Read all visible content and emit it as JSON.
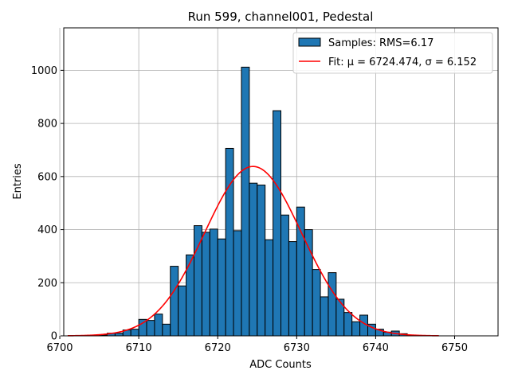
{
  "chart_data": {
    "type": "bar",
    "title": "Run 599, channel001, Pedestal",
    "xlabel": "ADC Counts",
    "ylabel": "Entries",
    "xlim": [
      6700.5,
      6755.5
    ],
    "ylim": [
      0,
      1160
    ],
    "xticks": [
      6700,
      6710,
      6720,
      6730,
      6740,
      6750
    ],
    "yticks": [
      0,
      200,
      400,
      600,
      800,
      1000
    ],
    "grid": true,
    "legend_position": "top-right",
    "bin_width": 1,
    "bins_start": [
      6705,
      6706,
      6707,
      6708,
      6709,
      6710,
      6711,
      6712,
      6713,
      6714,
      6715,
      6716,
      6717,
      6718,
      6719,
      6720,
      6721,
      6722,
      6723,
      6724,
      6725,
      6726,
      6727,
      6728,
      6729,
      6730,
      6731,
      6732,
      6733,
      6734,
      6735,
      6736,
      6737,
      6738,
      6739,
      6740,
      6741,
      6742,
      6743
    ],
    "counts": [
      3,
      10,
      10,
      22,
      25,
      62,
      58,
      82,
      44,
      262,
      188,
      305,
      415,
      390,
      402,
      365,
      706,
      396,
      1012,
      575,
      568,
      362,
      848,
      455,
      355,
      485,
      400,
      250,
      147,
      238,
      138,
      88,
      53,
      78,
      44,
      25,
      14,
      18,
      8
    ],
    "series": [
      {
        "name": "Samples: RMS=6.17",
        "kind": "histogram",
        "color": "#1f77b4"
      },
      {
        "name": "Fit: μ = 6724.474, σ = 6.152",
        "kind": "line",
        "color": "#ff0000",
        "mu": 6724.474,
        "sigma": 6.152,
        "amplitude": 638,
        "x_range": [
          6701,
          6748
        ]
      }
    ]
  }
}
